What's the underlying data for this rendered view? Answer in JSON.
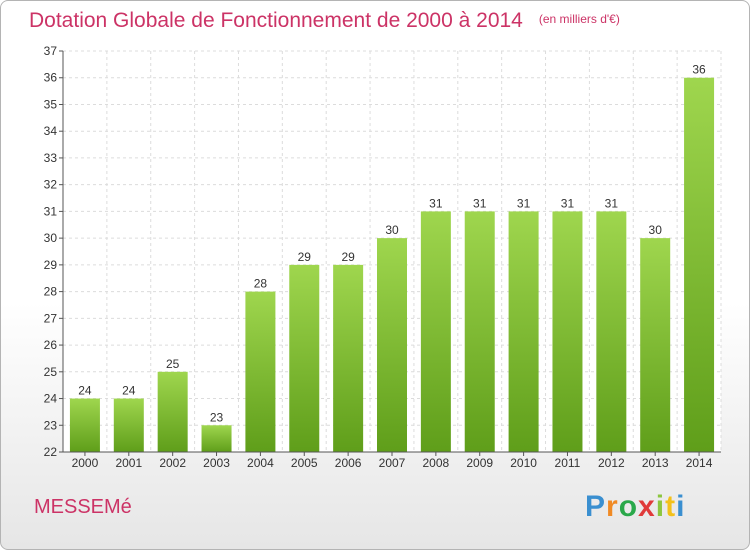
{
  "title": "Dotation Globale de Fonctionnement de 2000 à 2014",
  "unit": "(en milliers d'€)",
  "commune": "MESSEMé",
  "logo": {
    "text": "Proxiti",
    "colors": [
      "#3a8fd0",
      "#f08a24",
      "#2aa84a",
      "#e03a3a",
      "#8cc63f",
      "#f3c11b",
      "#3a8fd0"
    ]
  },
  "colors": {
    "accent": "#cc3366",
    "bar_light": "#9fd64e",
    "bar_dark": "#5f9e1a"
  },
  "chart_data": {
    "type": "bar",
    "categories": [
      "2000",
      "2001",
      "2002",
      "2003",
      "2004",
      "2005",
      "2006",
      "2007",
      "2008",
      "2009",
      "2010",
      "2011",
      "2012",
      "2013",
      "2014"
    ],
    "values": [
      24,
      24,
      25,
      23,
      28,
      29,
      29,
      30,
      31,
      31,
      31,
      31,
      31,
      30,
      36
    ],
    "ylim": [
      22,
      37
    ],
    "yticks": [
      22,
      23,
      24,
      25,
      26,
      27,
      28,
      29,
      30,
      31,
      32,
      33,
      34,
      35,
      36,
      37
    ],
    "grid": true
  }
}
